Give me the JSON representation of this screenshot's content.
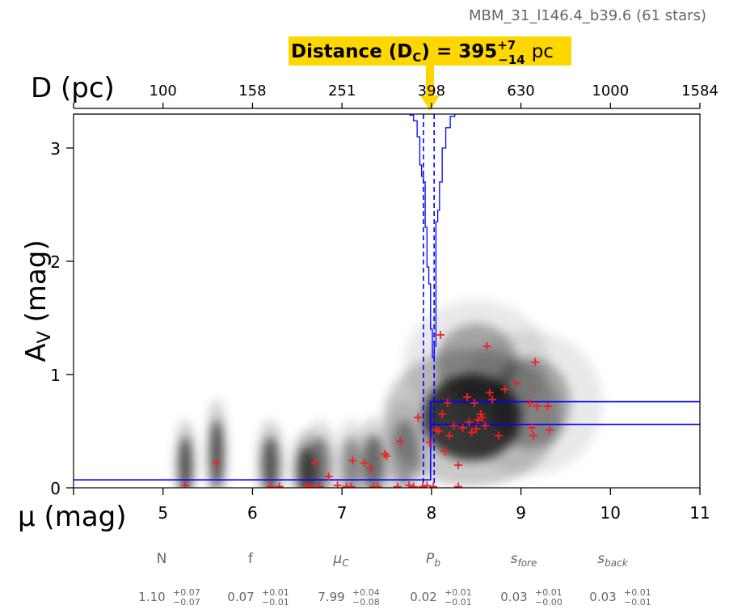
{
  "title": "MBM_31_l146.4_b39.6 (61 stars)",
  "banner": {
    "label": "Distance (D",
    "sub": "C",
    "label_mid": ") = 395",
    "sup": "+7",
    "sub2": "−14",
    "unit": "pc",
    "color": "#ffd700"
  },
  "chart_data": {
    "type": "scatter",
    "title": "MBM_31_l146.4_b39.6 (61 stars)",
    "xlabel": "μ (mag)",
    "ylabel": "A_V (mag)",
    "top_axis_label": "D (pc)",
    "xlim": [
      4,
      11
    ],
    "ylim": [
      0,
      3.3
    ],
    "x_ticks": [
      5,
      6,
      7,
      8,
      9,
      10,
      11
    ],
    "y_ticks": [
      0,
      1,
      2,
      3
    ],
    "top_ticks": [
      "100",
      "158",
      "251",
      "398",
      "630",
      "1000",
      "1584"
    ],
    "top_tick_positions_mu": [
      5,
      6,
      7,
      8,
      9,
      10,
      11
    ],
    "stars": [
      [
        5.25,
        0.02
      ],
      [
        5.6,
        0.22
      ],
      [
        6.2,
        0.01
      ],
      [
        6.3,
        0.01
      ],
      [
        6.6,
        0.02
      ],
      [
        6.65,
        0.01
      ],
      [
        6.7,
        0.22
      ],
      [
        6.85,
        0.1
      ],
      [
        6.95,
        0.02
      ],
      [
        7.1,
        0.01
      ],
      [
        7.12,
        0.24
      ],
      [
        7.25,
        0.22
      ],
      [
        7.32,
        0.17
      ],
      [
        7.35,
        0.01
      ],
      [
        7.48,
        0.3
      ],
      [
        7.5,
        0.28
      ],
      [
        7.62,
        0.01
      ],
      [
        7.65,
        0.41
      ],
      [
        7.75,
        0.02
      ],
      [
        7.8,
        0.01
      ],
      [
        7.85,
        0.62
      ],
      [
        7.95,
        0.02
      ],
      [
        7.98,
        0.4
      ],
      [
        8.05,
        0.51
      ],
      [
        8.08,
        0.5
      ],
      [
        8.1,
        1.35
      ],
      [
        8.12,
        0.65
      ],
      [
        8.15,
        0.32
      ],
      [
        8.18,
        0.75
      ],
      [
        8.2,
        0.46
      ],
      [
        8.25,
        0.55
      ],
      [
        8.3,
        0.2
      ],
      [
        8.35,
        0.53
      ],
      [
        8.4,
        0.8
      ],
      [
        8.42,
        0.58
      ],
      [
        8.45,
        0.49
      ],
      [
        8.48,
        0.75
      ],
      [
        8.5,
        0.52
      ],
      [
        8.52,
        0.6
      ],
      [
        8.55,
        0.65
      ],
      [
        8.57,
        0.62
      ],
      [
        8.6,
        0.55
      ],
      [
        8.62,
        1.25
      ],
      [
        8.65,
        0.84
      ],
      [
        8.68,
        0.78
      ],
      [
        8.75,
        0.46
      ],
      [
        8.82,
        0.87
      ],
      [
        8.95,
        0.92
      ],
      [
        9.1,
        0.75
      ],
      [
        9.12,
        0.53
      ],
      [
        9.14,
        0.46
      ],
      [
        9.16,
        1.11
      ],
      [
        9.18,
        0.72
      ],
      [
        9.3,
        0.72
      ],
      [
        9.32,
        0.51
      ],
      [
        8.3,
        0.01
      ],
      [
        8.02,
        0.01
      ],
      [
        7.9,
        0.01
      ],
      [
        7.05,
        0.01
      ],
      [
        7.4,
        0.01
      ],
      [
        6.75,
        0.01
      ]
    ],
    "model": {
      "distance_modulus": 7.99,
      "distance_modulus_err": [
        -0.08,
        0.04
      ],
      "foreground_av": 0.07,
      "background_av_range": [
        0.56,
        0.76
      ]
    },
    "density_blobs": [
      {
        "mu": 5.25,
        "av": 0.2,
        "smu": 0.07,
        "sav": 0.25,
        "w": 0.75
      },
      {
        "mu": 5.6,
        "av": 0.3,
        "smu": 0.07,
        "sav": 0.3,
        "w": 0.75
      },
      {
        "mu": 6.2,
        "av": 0.2,
        "smu": 0.09,
        "sav": 0.25,
        "w": 0.7
      },
      {
        "mu": 6.6,
        "av": 0.15,
        "smu": 0.1,
        "sav": 0.22,
        "w": 0.75
      },
      {
        "mu": 6.75,
        "av": 0.2,
        "smu": 0.12,
        "sav": 0.25,
        "w": 0.5
      },
      {
        "mu": 7.1,
        "av": 0.2,
        "smu": 0.1,
        "sav": 0.25,
        "w": 0.45
      },
      {
        "mu": 7.35,
        "av": 0.22,
        "smu": 0.12,
        "sav": 0.25,
        "w": 0.6
      },
      {
        "mu": 7.7,
        "av": 0.3,
        "smu": 0.15,
        "sav": 0.3,
        "w": 0.4
      },
      {
        "mu": 8.45,
        "av": 0.62,
        "smu": 0.55,
        "sav": 0.38,
        "w": 0.85
      },
      {
        "mu": 8.5,
        "av": 1.1,
        "smu": 0.45,
        "sav": 0.35,
        "w": 0.35
      },
      {
        "mu": 9.1,
        "av": 0.75,
        "smu": 0.45,
        "sav": 0.4,
        "w": 0.35
      }
    ]
  },
  "params": [
    {
      "name": "N",
      "italic": false,
      "value": "1.10",
      "sup": "+0.07",
      "sub": "−0.07"
    },
    {
      "name": "f",
      "italic": false,
      "value": "0.07",
      "sup": "+0.01",
      "sub": "−0.01"
    },
    {
      "name": "μ",
      "sub_name": "C",
      "italic": true,
      "value": "7.99",
      "sup": "+0.04",
      "sub": "−0.08"
    },
    {
      "name": "P",
      "sub_name": "b",
      "italic": true,
      "value": "0.02",
      "sup": "+0.01",
      "sub": "−0.01"
    },
    {
      "name": "s",
      "sub_name": "fore",
      "italic": true,
      "value": "0.03",
      "sup": "+0.01",
      "sub": "−0.00"
    },
    {
      "name": "s",
      "sub_name": "back",
      "italic": true,
      "value": "0.03",
      "sup": "+0.01",
      "sub": "−0.01"
    }
  ],
  "colors": {
    "model_line": "#0000ff",
    "stars": "#ee2222",
    "banner": "#ffd700",
    "arrow": "#ffd700"
  }
}
